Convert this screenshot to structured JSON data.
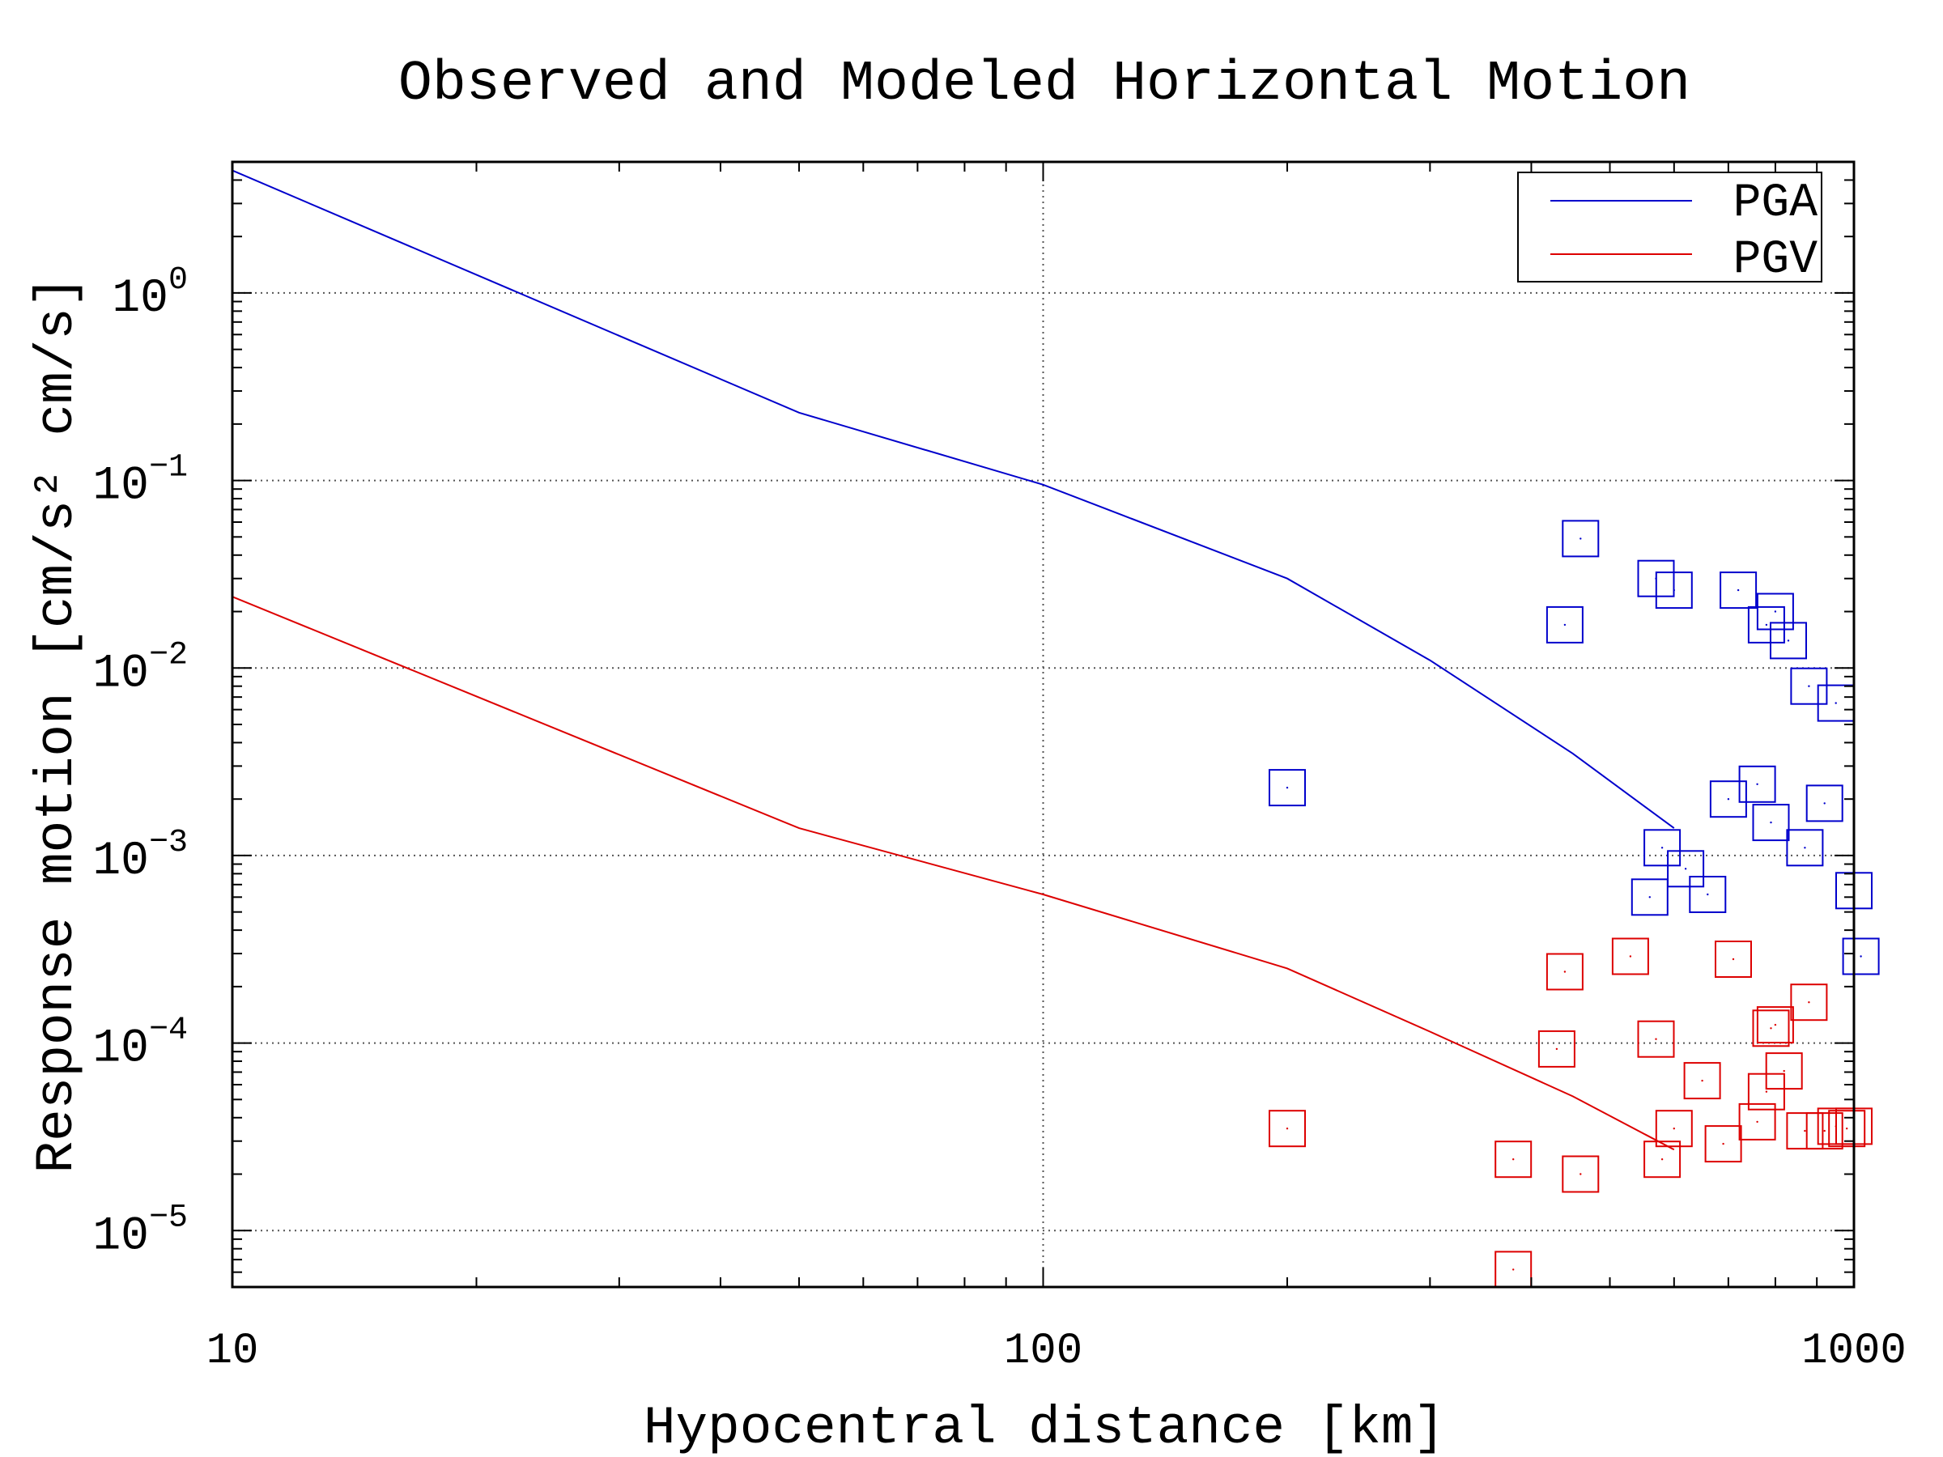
{
  "chart_data": {
    "type": "scatter",
    "title": "Observed and Modeled Horizontal Motion",
    "xlabel": "Hypocentral distance [km]",
    "ylabel": "Response motion [cm/s² cm/s]",
    "x_scale": "log",
    "y_scale": "log",
    "xlim": [
      10,
      1000
    ],
    "ylim": [
      5e-06,
      5
    ],
    "x_ticks": [
      {
        "value": 10,
        "label": "10"
      },
      {
        "value": 100,
        "label": "100"
      },
      {
        "value": 1000,
        "label": "1000"
      }
    ],
    "y_ticks": [
      {
        "exp": 0,
        "label_base": "10",
        "label_exp": "0"
      },
      {
        "exp": -1,
        "label_base": "10",
        "label_exp": "−1"
      },
      {
        "exp": -2,
        "label_base": "10",
        "label_exp": "−2"
      },
      {
        "exp": -3,
        "label_base": "10",
        "label_exp": "−3"
      },
      {
        "exp": -4,
        "label_base": "10",
        "label_exp": "−4"
      },
      {
        "exp": -5,
        "label_base": "10",
        "label_exp": "−5"
      }
    ],
    "grid": true,
    "legend_position": "top-right",
    "series": [
      {
        "name": "PGA",
        "color": "#0000cc",
        "model_curve": {
          "x": [
            10,
            50,
            100,
            200,
            300,
            450,
            600
          ],
          "y": [
            4.5,
            0.23,
            0.095,
            0.03,
            0.011,
            0.0035,
            0.0014
          ]
        },
        "observed": {
          "x": [
            200,
            440,
            460,
            560,
            570,
            600,
            580,
            620,
            660,
            700,
            720,
            760,
            780,
            790,
            800,
            830,
            870,
            880,
            920,
            950,
            1000,
            1020
          ],
          "y": [
            0.0023,
            0.017,
            0.049,
            0.0006,
            0.03,
            0.026,
            0.0011,
            0.00085,
            0.00062,
            0.002,
            0.026,
            0.0024,
            0.017,
            0.0015,
            0.02,
            0.014,
            0.0011,
            0.008,
            0.0019,
            0.0065,
            0.00065,
            0.00029
          ]
        }
      },
      {
        "name": "PGV",
        "color": "#dd0000",
        "model_curve": {
          "x": [
            10,
            50,
            100,
            200,
            300,
            450,
            600
          ],
          "y": [
            0.024,
            0.0014,
            0.00062,
            0.00025,
            0.000115,
            5.2e-05,
            2.7e-05
          ]
        },
        "observed": {
          "x": [
            200,
            380,
            380,
            430,
            440,
            460,
            530,
            570,
            580,
            600,
            650,
            690,
            710,
            760,
            780,
            790,
            800,
            820,
            870,
            880,
            920,
            950,
            980,
            1000
          ],
          "y": [
            3.5e-05,
            2.4e-05,
            6.2e-06,
            9.3e-05,
            0.00024,
            2e-05,
            0.00029,
            0.000105,
            2.4e-05,
            3.5e-05,
            6.3e-05,
            2.9e-05,
            0.00028,
            3.8e-05,
            5.5e-05,
            0.00012,
            0.000125,
            7.1e-05,
            3.4e-05,
            0.000165,
            3.4e-05,
            3.6e-05,
            3.5e-05,
            3.6e-05
          ]
        }
      }
    ]
  }
}
